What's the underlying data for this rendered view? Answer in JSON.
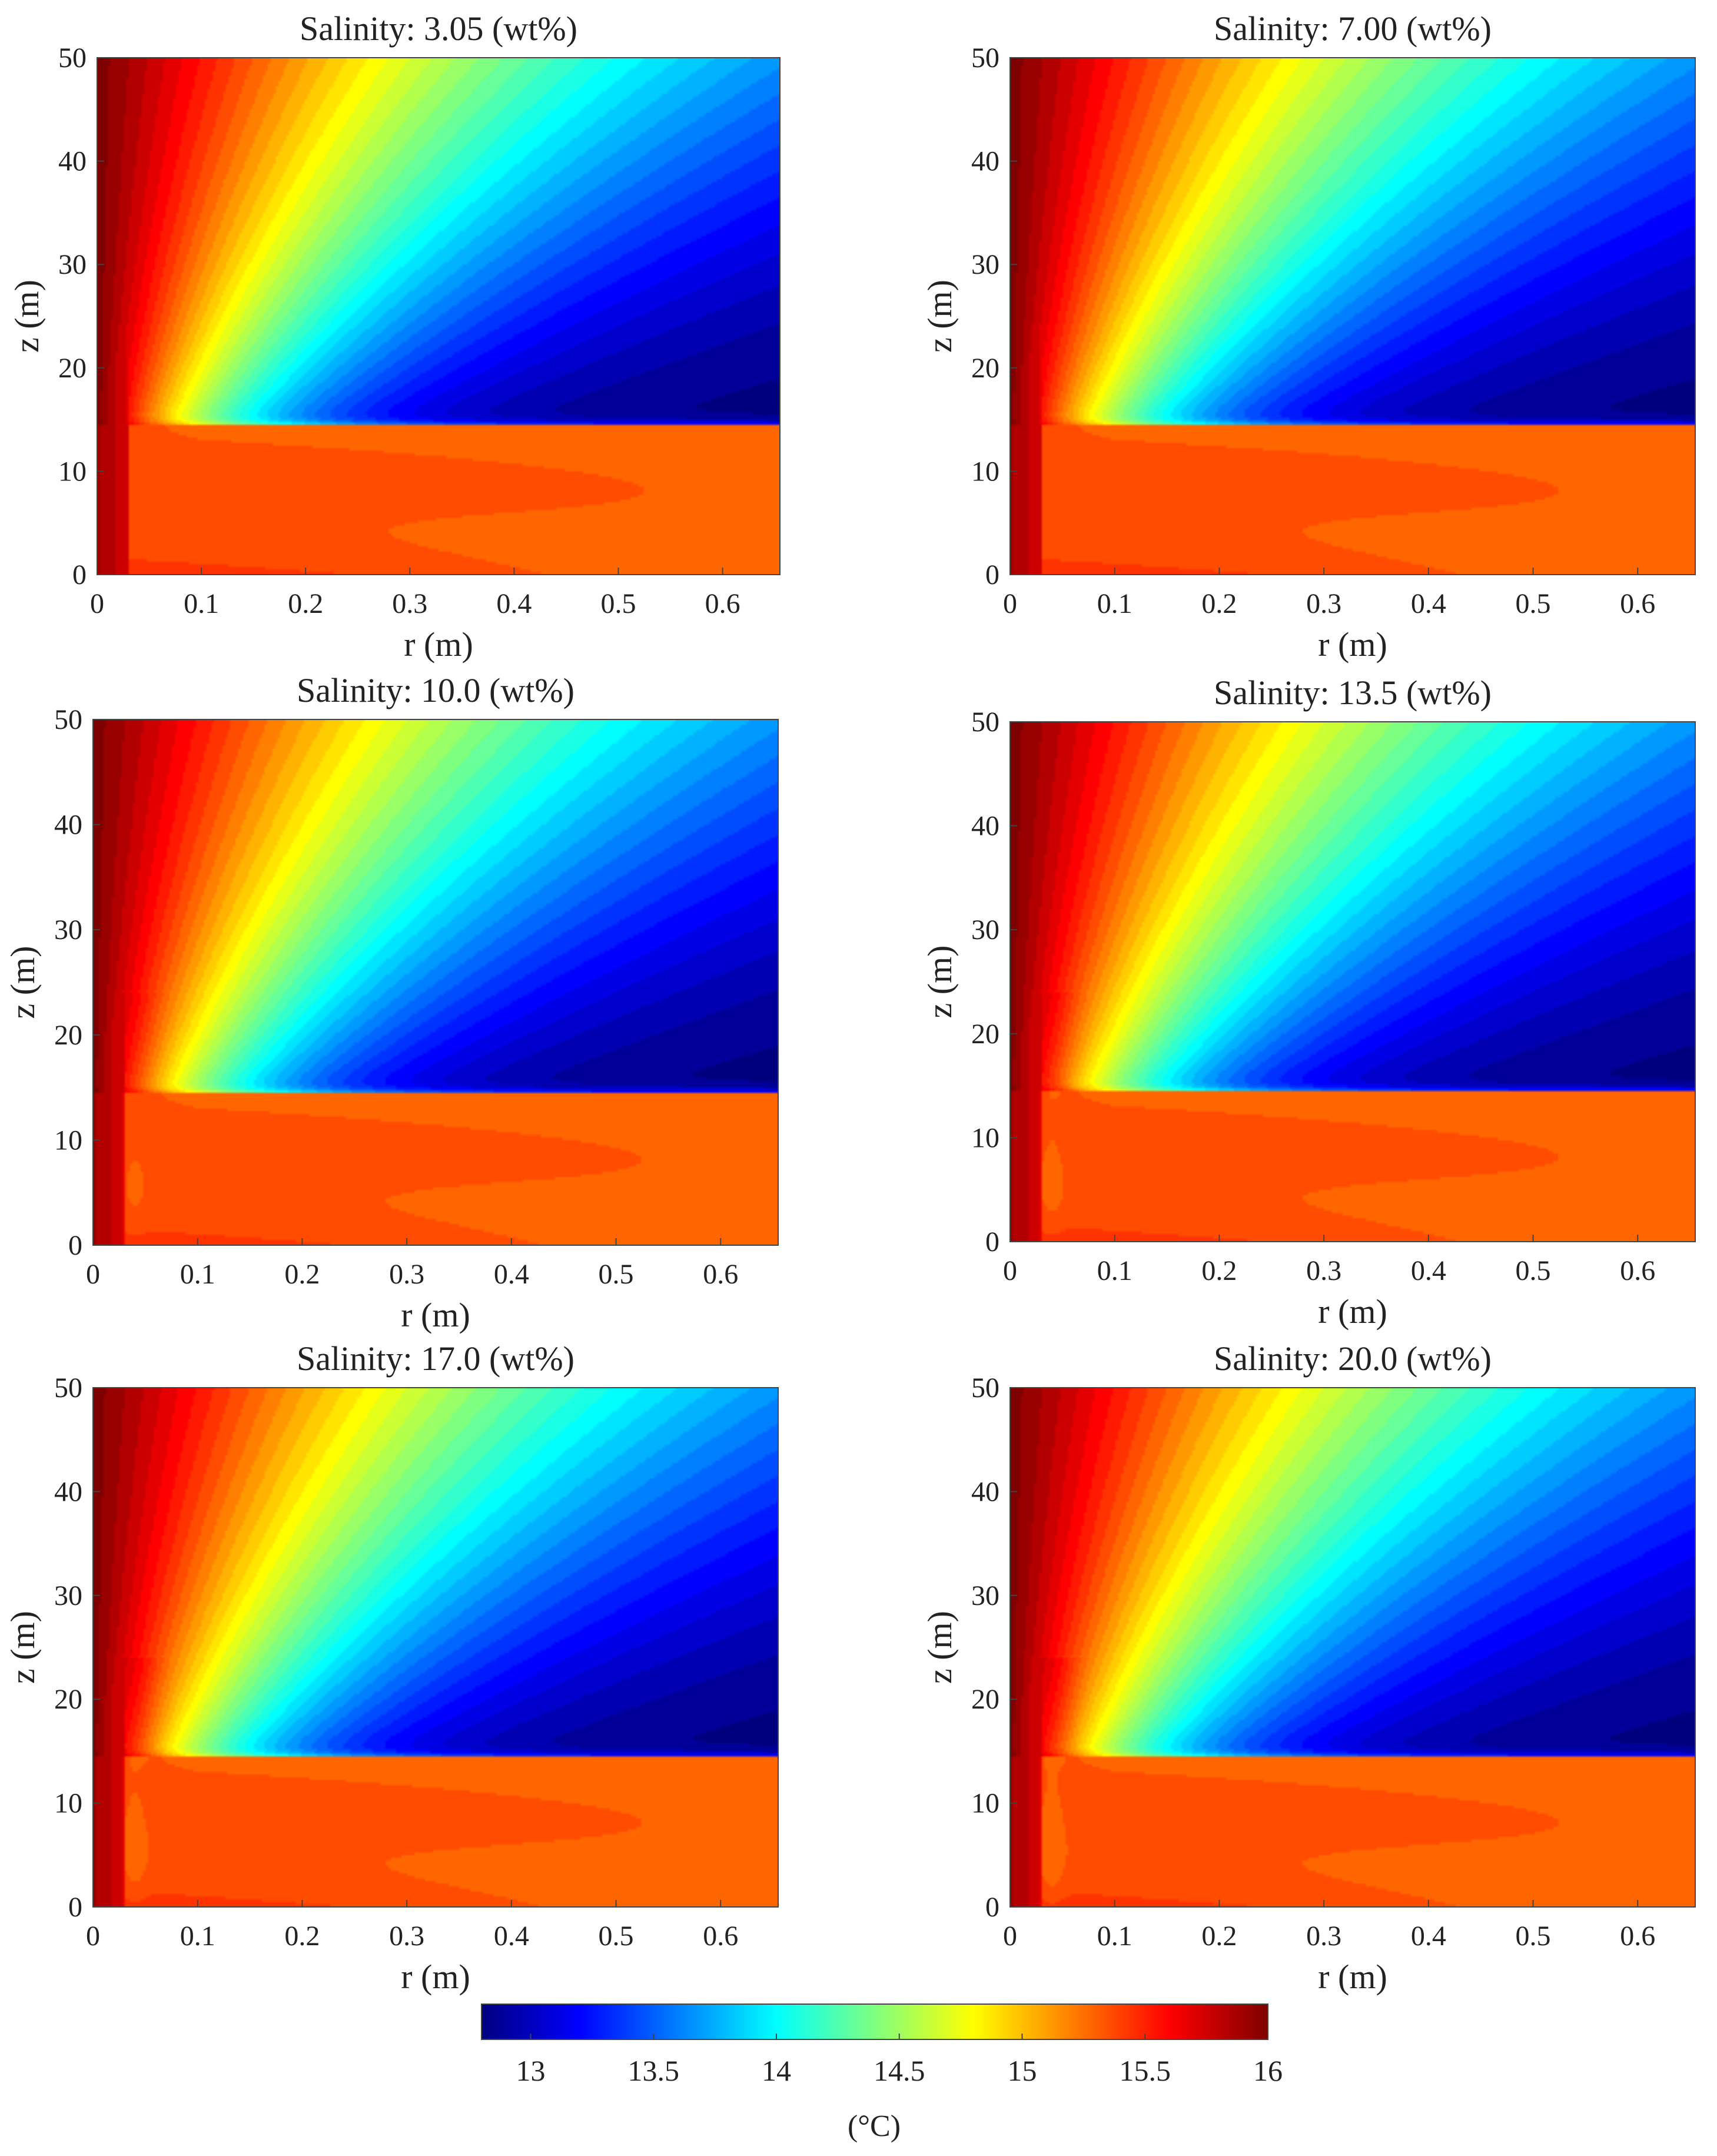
{
  "chart_data": [
    {
      "type": "heatmap",
      "title": "Salinity: 3.05 (wt%)",
      "xlabel": "r (m)",
      "ylabel": "z (m)",
      "xlim": [
        0,
        0.655
      ],
      "ylim": [
        0,
        50
      ],
      "xticks": [
        "0",
        "0.1",
        "0.2",
        "0.3",
        "0.4",
        "0.5",
        "0.6"
      ],
      "yticks": [
        "0",
        "10",
        "20",
        "30",
        "40",
        "50"
      ],
      "interface_z": 14.5
    },
    {
      "type": "heatmap",
      "title": "Salinity: 7.00 (wt%)",
      "xlabel": "r (m)",
      "ylabel": "z (m)",
      "xlim": [
        0,
        0.655
      ],
      "ylim": [
        0,
        50
      ],
      "xticks": [
        "0",
        "0.1",
        "0.2",
        "0.3",
        "0.4",
        "0.5",
        "0.6"
      ],
      "yticks": [
        "0",
        "10",
        "20",
        "30",
        "40",
        "50"
      ],
      "interface_z": 14.5
    },
    {
      "type": "heatmap",
      "title": "Salinity: 10.0 (wt%)",
      "xlabel": "r (m)",
      "ylabel": "z (m)",
      "xlim": [
        0,
        0.655
      ],
      "ylim": [
        0,
        50
      ],
      "xticks": [
        "0",
        "0.1",
        "0.2",
        "0.3",
        "0.4",
        "0.5",
        "0.6"
      ],
      "yticks": [
        "0",
        "10",
        "20",
        "30",
        "40",
        "50"
      ],
      "interface_z": 14.5
    },
    {
      "type": "heatmap",
      "title": "Salinity: 13.5 (wt%)",
      "xlabel": "r (m)",
      "ylabel": "z (m)",
      "xlim": [
        0,
        0.655
      ],
      "ylim": [
        0,
        50
      ],
      "xticks": [
        "0",
        "0.1",
        "0.2",
        "0.3",
        "0.4",
        "0.5",
        "0.6"
      ],
      "yticks": [
        "0",
        "10",
        "20",
        "30",
        "40",
        "50"
      ],
      "interface_z": 14.5
    },
    {
      "type": "heatmap",
      "title": "Salinity: 17.0 (wt%)",
      "xlabel": "r (m)",
      "ylabel": "z (m)",
      "xlim": [
        0,
        0.655
      ],
      "ylim": [
        0,
        50
      ],
      "xticks": [
        "0",
        "0.1",
        "0.2",
        "0.3",
        "0.4",
        "0.5",
        "0.6"
      ],
      "yticks": [
        "0",
        "10",
        "20",
        "30",
        "40",
        "50"
      ],
      "interface_z": 14.5
    },
    {
      "type": "heatmap",
      "title": "Salinity: 20.0 (wt%)",
      "xlabel": "r (m)",
      "ylabel": "z (m)",
      "xlim": [
        0,
        0.655
      ],
      "ylim": [
        0,
        50
      ],
      "xticks": [
        "0",
        "0.1",
        "0.2",
        "0.3",
        "0.4",
        "0.5",
        "0.6"
      ],
      "yticks": [
        "0",
        "10",
        "20",
        "30",
        "40",
        "50"
      ],
      "interface_z": 14.5
    }
  ],
  "colorbar": {
    "range": [
      12.8,
      16
    ],
    "ticks": [
      "13",
      "13.5",
      "14",
      "14.5",
      "15",
      "15.5",
      "16"
    ],
    "unit": "(°C)",
    "colormap": "jet",
    "colormap_stops": [
      "#00007f",
      "#0000ff",
      "#007fff",
      "#00ffff",
      "#7fff7f",
      "#ffff00",
      "#ff7f00",
      "#ff0000",
      "#7f0000"
    ]
  }
}
